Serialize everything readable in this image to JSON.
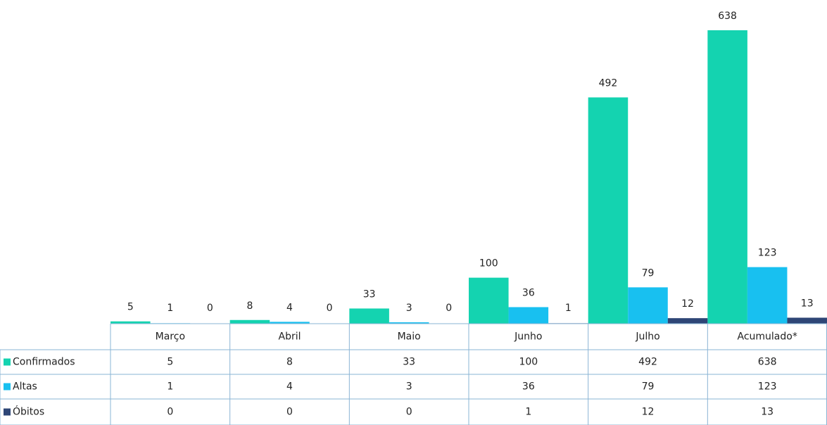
{
  "chart_data": {
    "type": "bar",
    "categories": [
      "Março",
      "Abril",
      "Maio",
      "Junho",
      "Julho",
      "Acumulado*"
    ],
    "series": [
      {
        "name": "Confirmados",
        "color": "#14d3b0",
        "values": [
          5,
          8,
          33,
          100,
          492,
          638
        ]
      },
      {
        "name": "Altas",
        "color": "#18c0f0",
        "values": [
          1,
          4,
          3,
          36,
          79,
          123
        ]
      },
      {
        "name": "Óbitos",
        "color": "#2e4676",
        "values": [
          0,
          0,
          0,
          1,
          12,
          13
        ]
      }
    ]
  }
}
